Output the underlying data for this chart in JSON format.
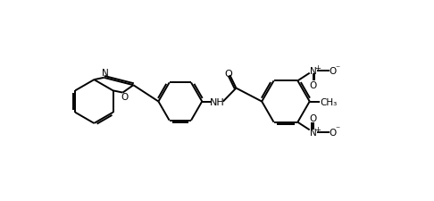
{
  "background": "#ffffff",
  "line_color": "#000000",
  "line_width": 1.4,
  "dbo": 0.055,
  "text_color": "#000000",
  "fig_width": 4.86,
  "fig_height": 2.26,
  "dpi": 100,
  "xlim": [
    0,
    9.5
  ],
  "ylim": [
    0,
    4.42
  ]
}
